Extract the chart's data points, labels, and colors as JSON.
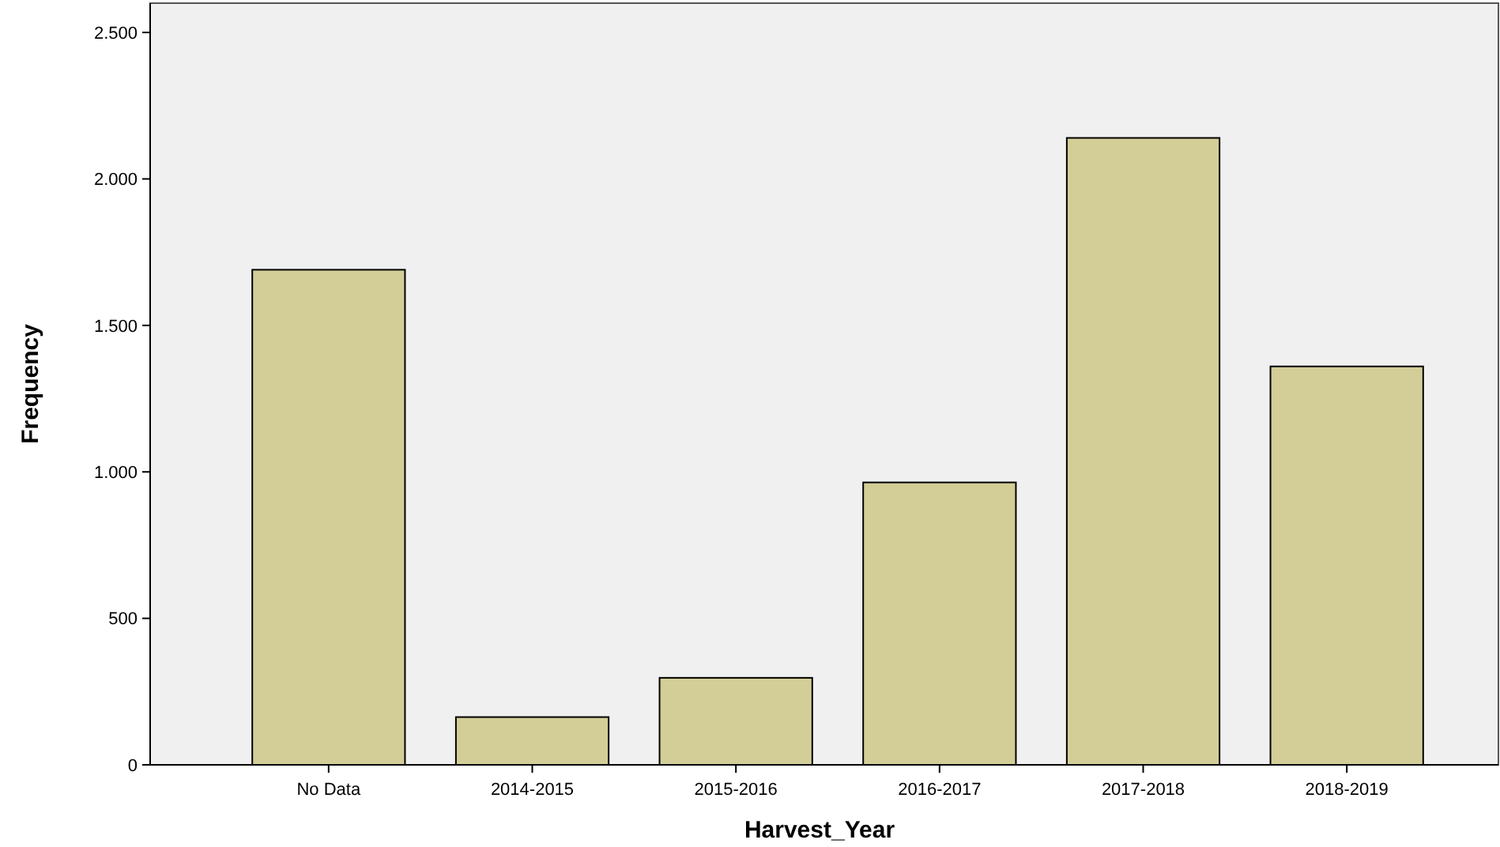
{
  "chart_data": {
    "type": "bar",
    "xlabel": "Harvest_Year",
    "ylabel": "Frequency",
    "categories": [
      "No Data",
      "2014-2015",
      "2015-2016",
      "2016-2017",
      "2017-2018",
      "2018-2019"
    ],
    "values": [
      1690,
      163,
      297,
      964,
      2140,
      1360
    ],
    "color": "#d3ce97",
    "ylim": [
      0,
      2600
    ],
    "yticks": [
      0,
      {
        "value": 500,
        "label": "500"
      },
      {
        "value": 1000,
        "label": "1.000"
      },
      {
        "value": 1500,
        "label": "1.500"
      },
      {
        "value": 2000,
        "label": "2.000"
      },
      {
        "value": 2500,
        "label": "2.500"
      }
    ],
    "grid": false
  }
}
